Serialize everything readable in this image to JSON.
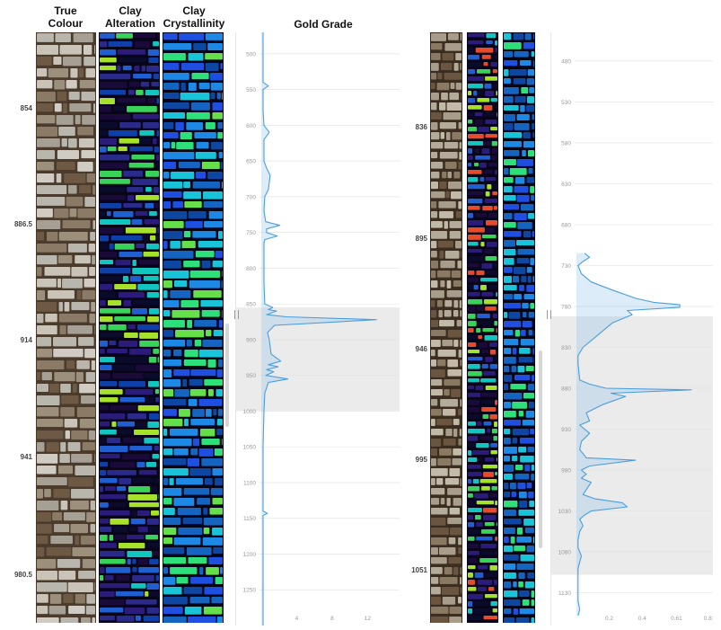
{
  "headers": {
    "true_colour": [
      "True",
      "Colour"
    ],
    "clay_alteration": [
      "Clay",
      "Alteration"
    ],
    "clay_crystallinity": [
      "Clay",
      "Crystallinity"
    ],
    "gold_grade": "Gold Grade"
  },
  "left_depth_markers": [
    "854",
    "886.5",
    "914",
    "941",
    "980.5"
  ],
  "right_depth_markers": [
    "836",
    "895",
    "946",
    "995",
    "1051"
  ],
  "colors": {
    "line": "#4a9ee0",
    "fill": "rgba(120,180,230,0.25)",
    "highlight": "#ebebeb",
    "tick_text": "#9a9a9a"
  },
  "chart_data": [
    {
      "type": "line",
      "title": "Gold Grade",
      "xlabel": "",
      "ylabel": "",
      "x_ticks": [
        "4",
        "8",
        "12"
      ],
      "xlim": [
        0,
        15
      ],
      "y_ticks": [
        "500",
        "550",
        "600",
        "650",
        "700",
        "750",
        "800",
        "850",
        "900",
        "950",
        "1000",
        "1050",
        "1100",
        "1150",
        "1200",
        "1250"
      ],
      "ylim": [
        470,
        1300
      ],
      "y_inverted": true,
      "highlight_range": [
        855,
        1000
      ],
      "grid": "horizontal",
      "series": [
        {
          "depth": [
            470,
            520,
            540,
            545,
            550,
            580,
            600,
            610,
            620,
            650,
            660,
            670,
            680,
            690,
            700,
            720,
            735,
            740,
            745,
            750,
            755,
            760,
            765,
            770,
            790,
            820,
            850,
            855,
            858,
            860,
            865,
            868,
            872,
            880,
            890,
            900,
            920,
            930,
            935,
            938,
            942,
            945,
            950,
            955,
            960,
            975,
            1000,
            1050,
            1100,
            1140,
            1143,
            1146,
            1150,
            1200,
            1250,
            1300
          ],
          "grade": [
            0.2,
            0.2,
            0.2,
            0.8,
            0.2,
            0.2,
            0.3,
            0.9,
            0.3,
            0.3,
            0.6,
            1.0,
            0.9,
            0.8,
            0.4,
            0.3,
            0.5,
            2.1,
            0.6,
            0.6,
            1.8,
            0.4,
            0.3,
            0.3,
            0.3,
            0.3,
            0.4,
            1.3,
            0.8,
            1.7,
            0.6,
            2.8,
            13.0,
            1.5,
            0.7,
            0.9,
            1.1,
            2.2,
            0.8,
            1.9,
            0.6,
            1.4,
            0.5,
            3.0,
            0.8,
            0.4,
            0.3,
            0.2,
            0.2,
            0.2,
            0.7,
            0.2,
            0.2,
            0.2,
            0.2,
            0.2
          ]
        }
      ]
    },
    {
      "type": "line",
      "title": "",
      "xlabel": "",
      "ylabel": "",
      "x_ticks": [
        "0.2",
        "0.4",
        "0.61",
        "0.81"
      ],
      "xlim": [
        0,
        0.81
      ],
      "y_ticks": [
        "480",
        "530",
        "580",
        "630",
        "680",
        "730",
        "780",
        "830",
        "880",
        "930",
        "980",
        "1030",
        "1080",
        "1130"
      ],
      "ylim": [
        445,
        1170
      ],
      "y_inverted": true,
      "highlight_range": [
        792,
        1108
      ],
      "grid": "horizontal",
      "series": [
        {
          "depth": [
            715,
            720,
            725,
            730,
            740,
            750,
            760,
            770,
            775,
            778,
            781,
            785,
            790,
            795,
            800,
            830,
            840,
            850,
            870,
            875,
            880,
            882,
            886,
            890,
            900,
            910,
            920,
            925,
            935,
            945,
            955,
            965,
            968,
            975,
            980,
            985,
            990,
            995,
            1010,
            1015,
            1020,
            1025,
            1030,
            1035,
            1040,
            1048,
            1055,
            1065,
            1075,
            1085,
            1100,
            1140,
            1150,
            1158
          ],
          "grade": [
            0.05,
            0.08,
            0.04,
            0.01,
            0.03,
            0.09,
            0.22,
            0.36,
            0.47,
            0.63,
            0.63,
            0.31,
            0.34,
            0.28,
            0.22,
            0.04,
            0.01,
            0.01,
            0.02,
            0.08,
            0.18,
            0.7,
            0.21,
            0.3,
            0.16,
            0.06,
            0.08,
            0.02,
            0.08,
            0.03,
            0.02,
            0.06,
            0.36,
            0.08,
            0.03,
            0.06,
            0.03,
            0.09,
            0.04,
            0.11,
            0.28,
            0.31,
            0.09,
            0.05,
            0.02,
            0.04,
            0.02,
            0.01,
            0.01,
            0.03,
            0.01,
            0.01,
            0.02,
            0.01
          ]
        }
      ]
    }
  ]
}
